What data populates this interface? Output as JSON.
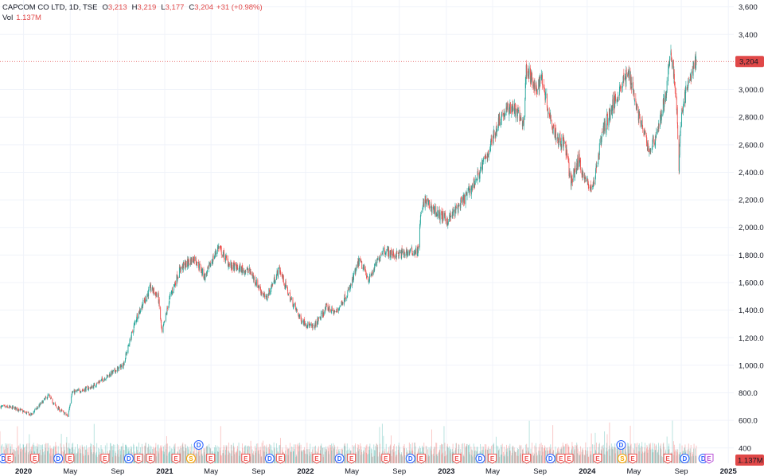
{
  "legend": {
    "title": "CAPCOM CO LTD, 1D, TSE",
    "o_label": "O",
    "o_value": "3,213",
    "h_label": "H",
    "h_value": "3,219",
    "l_label": "L",
    "l_value": "3,177",
    "c_label": "C",
    "c_value": "3,204",
    "change": "+31 (+0.98%)",
    "vol_label": "Vol",
    "vol_value": "1.137M"
  },
  "colors": {
    "up": "#26a69a",
    "down": "#ef5350",
    "price_line": "#e04848",
    "grid": "#f0f3fa",
    "text": "#131722"
  },
  "chart_data": {
    "type": "candlestick",
    "title": "CAPCOM CO LTD, 1D, TSE",
    "y_axis": {
      "range": [
        370,
        3650
      ],
      "ticks": [
        {
          "value": 400,
          "label": "400"
        },
        {
          "value": 600,
          "label": "600.0"
        },
        {
          "value": 800,
          "label": "800.0"
        },
        {
          "value": 1000,
          "label": "1,000.0"
        },
        {
          "value": 1200,
          "label": "1,200.0"
        },
        {
          "value": 1400,
          "label": "1,400.0"
        },
        {
          "value": 1600,
          "label": "1,600.0"
        },
        {
          "value": 1800,
          "label": "1,800.0"
        },
        {
          "value": 2000,
          "label": "2,000.0"
        },
        {
          "value": 2200,
          "label": "2,200.0"
        },
        {
          "value": 2400,
          "label": "2,400.0"
        },
        {
          "value": 2600,
          "label": "2,600.0"
        },
        {
          "value": 2800,
          "label": "2,800.0"
        },
        {
          "value": 3000,
          "label": "3,000.0"
        },
        {
          "value": 3400,
          "label": "3,400"
        },
        {
          "value": 3600,
          "label": "3,600"
        }
      ]
    },
    "x_axis": {
      "range": [
        "2019-11-01",
        "2025-01-15"
      ],
      "ticks": [
        {
          "date": "2020-01-01",
          "label": "2020",
          "bold": true
        },
        {
          "date": "2020-05-01",
          "label": "May",
          "bold": false
        },
        {
          "date": "2020-09-01",
          "label": "Sep",
          "bold": false
        },
        {
          "date": "2021-01-01",
          "label": "2021",
          "bold": true
        },
        {
          "date": "2021-05-01",
          "label": "May",
          "bold": false
        },
        {
          "date": "2021-09-01",
          "label": "Sep",
          "bold": false
        },
        {
          "date": "2022-01-01",
          "label": "2022",
          "bold": true
        },
        {
          "date": "2022-05-01",
          "label": "May",
          "bold": false
        },
        {
          "date": "2022-09-01",
          "label": "Sep",
          "bold": false
        },
        {
          "date": "2023-01-01",
          "label": "2023",
          "bold": true
        },
        {
          "date": "2023-05-01",
          "label": "May",
          "bold": false
        },
        {
          "date": "2023-09-01",
          "label": "Sep",
          "bold": false
        },
        {
          "date": "2024-01-01",
          "label": "2024",
          "bold": true
        },
        {
          "date": "2024-05-01",
          "label": "May",
          "bold": false
        },
        {
          "date": "2024-09-01",
          "label": "Sep",
          "bold": false
        },
        {
          "date": "2025-01-01",
          "label": "2025",
          "bold": true
        }
      ]
    },
    "last_price": {
      "value": 3204,
      "label": "3,204"
    },
    "last_volume": {
      "label": "1.137M"
    },
    "price_anchors": [
      {
        "date": "2019-11-01",
        "close": 700
      },
      {
        "date": "2019-12-10",
        "close": 690
      },
      {
        "date": "2020-01-20",
        "close": 640
      },
      {
        "date": "2020-03-05",
        "close": 780
      },
      {
        "date": "2020-03-25",
        "close": 700
      },
      {
        "date": "2020-04-25",
        "close": 630
      },
      {
        "date": "2020-05-05",
        "close": 800
      },
      {
        "date": "2020-06-25",
        "close": 840
      },
      {
        "date": "2020-08-25",
        "close": 960
      },
      {
        "date": "2020-09-15",
        "close": 1000
      },
      {
        "date": "2020-10-20",
        "close": 1350
      },
      {
        "date": "2020-11-25",
        "close": 1560
      },
      {
        "date": "2020-12-15",
        "close": 1500
      },
      {
        "date": "2020-12-25",
        "close": 1230
      },
      {
        "date": "2021-01-15",
        "close": 1500
      },
      {
        "date": "2021-02-10",
        "close": 1700
      },
      {
        "date": "2021-03-20",
        "close": 1780
      },
      {
        "date": "2021-04-15",
        "close": 1640
      },
      {
        "date": "2021-05-20",
        "close": 1860
      },
      {
        "date": "2021-06-20",
        "close": 1720
      },
      {
        "date": "2021-08-10",
        "close": 1680
      },
      {
        "date": "2021-09-20",
        "close": 1480
      },
      {
        "date": "2021-10-25",
        "close": 1700
      },
      {
        "date": "2021-11-20",
        "close": 1500
      },
      {
        "date": "2021-12-20",
        "close": 1330
      },
      {
        "date": "2022-01-20",
        "close": 1270
      },
      {
        "date": "2022-02-25",
        "close": 1420
      },
      {
        "date": "2022-03-20",
        "close": 1380
      },
      {
        "date": "2022-04-25",
        "close": 1550
      },
      {
        "date": "2022-05-20",
        "close": 1760
      },
      {
        "date": "2022-06-15",
        "close": 1620
      },
      {
        "date": "2022-07-20",
        "close": 1840
      },
      {
        "date": "2022-08-20",
        "close": 1800
      },
      {
        "date": "2022-09-25",
        "close": 1820
      },
      {
        "date": "2022-10-20",
        "close": 1830
      },
      {
        "date": "2022-10-25",
        "close": 2050
      },
      {
        "date": "2022-11-05",
        "close": 2200
      },
      {
        "date": "2022-12-10",
        "close": 2100
      },
      {
        "date": "2023-01-05",
        "close": 2050
      },
      {
        "date": "2023-02-15",
        "close": 2200
      },
      {
        "date": "2023-03-20",
        "close": 2350
      },
      {
        "date": "2023-04-20",
        "close": 2550
      },
      {
        "date": "2023-05-20",
        "close": 2800
      },
      {
        "date": "2023-06-20",
        "close": 2880
      },
      {
        "date": "2023-07-20",
        "close": 2760
      },
      {
        "date": "2023-07-28",
        "close": 3180
      },
      {
        "date": "2023-08-20",
        "close": 2980
      },
      {
        "date": "2023-09-05",
        "close": 3100
      },
      {
        "date": "2023-09-25",
        "close": 2820
      },
      {
        "date": "2023-10-15",
        "close": 2650
      },
      {
        "date": "2023-11-05",
        "close": 2600
      },
      {
        "date": "2023-11-20",
        "close": 2320
      },
      {
        "date": "2023-12-10",
        "close": 2500
      },
      {
        "date": "2023-12-25",
        "close": 2350
      },
      {
        "date": "2024-01-15",
        "close": 2280
      },
      {
        "date": "2024-02-10",
        "close": 2700
      },
      {
        "date": "2024-03-10",
        "close": 2900
      },
      {
        "date": "2024-04-01",
        "close": 3050
      },
      {
        "date": "2024-04-20",
        "close": 3120
      },
      {
        "date": "2024-05-10",
        "close": 2850
      },
      {
        "date": "2024-06-10",
        "close": 2550
      },
      {
        "date": "2024-06-25",
        "close": 2650
      },
      {
        "date": "2024-07-10",
        "close": 2800
      },
      {
        "date": "2024-07-25",
        "close": 3000
      },
      {
        "date": "2024-08-05",
        "close": 3280
      },
      {
        "date": "2024-08-12",
        "close": 3120
      },
      {
        "date": "2024-08-20",
        "close": 2900
      },
      {
        "date": "2024-08-26",
        "close": 2420
      },
      {
        "date": "2024-09-01",
        "close": 2850
      },
      {
        "date": "2024-09-20",
        "close": 3050
      },
      {
        "date": "2024-10-05",
        "close": 3180
      },
      {
        "date": "2024-10-10",
        "close": 3204
      }
    ],
    "events": [
      {
        "date": "2019-11-10",
        "type": "D"
      },
      {
        "date": "2019-11-25",
        "type": "E"
      },
      {
        "date": "2020-01-30",
        "type": "E"
      },
      {
        "date": "2020-03-31",
        "type": "D"
      },
      {
        "date": "2020-04-30",
        "type": "E"
      },
      {
        "date": "2020-07-30",
        "type": "E"
      },
      {
        "date": "2020-09-30",
        "type": "D"
      },
      {
        "date": "2020-10-25",
        "type": "E"
      },
      {
        "date": "2020-11-25",
        "type": "E"
      },
      {
        "date": "2021-01-30",
        "type": "E"
      },
      {
        "date": "2021-03-10",
        "type": "S"
      },
      {
        "date": "2021-03-30",
        "type": "D"
      },
      {
        "date": "2021-04-30",
        "type": "E"
      },
      {
        "date": "2021-07-30",
        "type": "E"
      },
      {
        "date": "2021-09-30",
        "type": "D"
      },
      {
        "date": "2021-10-28",
        "type": "E"
      },
      {
        "date": "2022-01-30",
        "type": "E"
      },
      {
        "date": "2022-03-30",
        "type": "D"
      },
      {
        "date": "2022-04-30",
        "type": "E"
      },
      {
        "date": "2022-07-28",
        "type": "E"
      },
      {
        "date": "2022-09-30",
        "type": "D"
      },
      {
        "date": "2022-10-28",
        "type": "E"
      },
      {
        "date": "2023-01-28",
        "type": "E"
      },
      {
        "date": "2023-03-30",
        "type": "D"
      },
      {
        "date": "2023-04-30",
        "type": "E"
      },
      {
        "date": "2023-07-28",
        "type": "E"
      },
      {
        "date": "2023-09-28",
        "type": "D"
      },
      {
        "date": "2023-10-25",
        "type": "E"
      },
      {
        "date": "2023-11-15",
        "type": "E"
      },
      {
        "date": "2024-01-28",
        "type": "E"
      },
      {
        "date": "2024-03-29",
        "type": "D"
      },
      {
        "date": "2024-04-01",
        "type": "S"
      },
      {
        "date": "2024-04-28",
        "type": "E"
      },
      {
        "date": "2024-07-28",
        "type": "E"
      },
      {
        "date": "2024-09-10",
        "type": "D"
      },
      {
        "date": "2024-10-28",
        "type": "D"
      },
      {
        "date": "2024-11-12",
        "type": "E"
      }
    ]
  }
}
